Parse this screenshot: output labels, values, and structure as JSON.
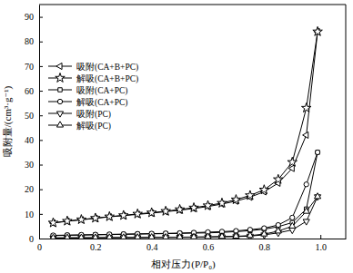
{
  "chart_data": {
    "type": "line",
    "x_label": "相对压力(P/P₀)",
    "y_label": "吸附量/(cm³·g⁻¹)",
    "x": [
      0.05,
      0.1,
      0.15,
      0.2,
      0.25,
      0.3,
      0.35,
      0.4,
      0.45,
      0.5,
      0.55,
      0.6,
      0.65,
      0.7,
      0.75,
      0.8,
      0.85,
      0.9,
      0.95,
      0.99
    ],
    "series": [
      {
        "name": "吸附(CA+B+PC)",
        "color": "#000000",
        "marker": "triangle-left",
        "values": [
          6.3,
          7.0,
          7.6,
          8.2,
          8.8,
          9.3,
          9.8,
          10.3,
          10.9,
          11.5,
          12.2,
          13.0,
          14.0,
          15.2,
          16.8,
          19.0,
          22.5,
          28.5,
          42,
          84
        ]
      },
      {
        "name": "解吸(CA+B+PC)",
        "color": "#000000",
        "marker": "star",
        "values": [
          6.4,
          7.1,
          7.7,
          8.3,
          8.9,
          9.4,
          10.0,
          10.5,
          11.1,
          11.8,
          12.5,
          13.4,
          14.4,
          15.8,
          17.5,
          19.8,
          24,
          31,
          53,
          84
        ]
      },
      {
        "name": "吸附(CA+PC)",
        "color": "#000000",
        "marker": "square",
        "values": [
          1.2,
          1.3,
          1.4,
          1.5,
          1.6,
          1.7,
          1.8,
          1.9,
          2.0,
          2.1,
          2.2,
          2.3,
          2.5,
          2.8,
          3.2,
          3.8,
          4.8,
          6.5,
          12,
          35
        ]
      },
      {
        "name": "解吸(CA+PC)",
        "color": "#000000",
        "marker": "circle",
        "values": [
          1.3,
          1.4,
          1.5,
          1.6,
          1.7,
          1.8,
          1.9,
          2.0,
          2.1,
          2.2,
          2.4,
          2.6,
          2.8,
          3.1,
          3.6,
          4.2,
          5.5,
          8.5,
          22,
          35
        ]
      },
      {
        "name": "吸附(PC)",
        "color": "#000000",
        "marker": "triangle-down",
        "values": [
          0.2,
          0.25,
          0.3,
          0.3,
          0.35,
          0.4,
          0.4,
          0.45,
          0.5,
          0.5,
          0.55,
          0.6,
          0.7,
          0.8,
          1.0,
          1.5,
          2.3,
          3.5,
          7,
          17
        ]
      },
      {
        "name": "解吸(PC)",
        "color": "#000000",
        "marker": "triangle-up",
        "values": [
          0.25,
          0.3,
          0.3,
          0.35,
          0.4,
          0.4,
          0.45,
          0.5,
          0.5,
          0.55,
          0.6,
          0.7,
          0.8,
          0.9,
          1.2,
          1.8,
          3.0,
          5,
          11,
          17
        ]
      }
    ],
    "xlim": [
      0,
      1.09
    ],
    "ylim": [
      0,
      95
    ],
    "xticks": [
      0,
      0.2,
      0.4,
      0.6,
      0.8,
      {
        "value": 1,
        "label": "1.0"
      }
    ],
    "yticks": [
      0,
      10,
      20,
      30,
      40,
      50,
      60,
      70,
      80,
      90
    ],
    "legend": "upper left",
    "grid": false
  }
}
